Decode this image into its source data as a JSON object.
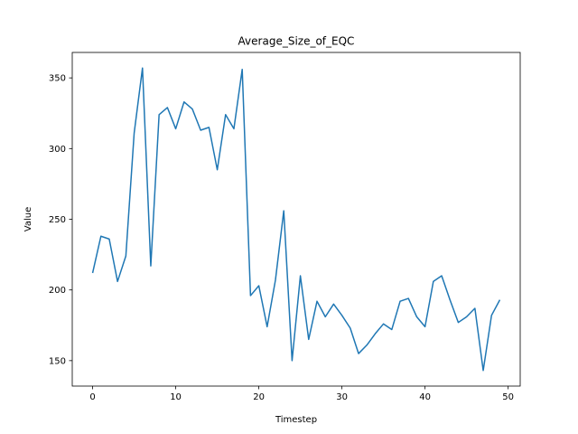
{
  "chart_data": {
    "type": "line",
    "title": "Average_Size_of_EQC",
    "xlabel": "Timestep",
    "ylabel": "Value",
    "xlim": [
      -2.45,
      51.45
    ],
    "ylim": [
      132,
      368
    ],
    "xticks": [
      0,
      10,
      20,
      30,
      40,
      50
    ],
    "yticks": [
      150,
      200,
      250,
      300,
      350
    ],
    "grid": false,
    "series": [
      {
        "color": "#1f77b4",
        "x": [
          0,
          1,
          2,
          3,
          4,
          5,
          6,
          7,
          8,
          9,
          10,
          11,
          12,
          13,
          14,
          15,
          16,
          17,
          18,
          19,
          20,
          21,
          22,
          23,
          24,
          25,
          26,
          27,
          28,
          29,
          30,
          31,
          32,
          33,
          34,
          35,
          36,
          37,
          38,
          39,
          40,
          41,
          42,
          43,
          44,
          45,
          46,
          47,
          48,
          49
        ],
        "values": [
          212,
          238,
          236,
          206,
          224,
          311,
          357,
          217,
          324,
          329,
          314,
          333,
          328,
          313,
          315,
          285,
          324,
          314,
          356,
          196,
          203,
          174,
          207,
          256,
          150,
          210,
          165,
          192,
          181,
          190,
          182,
          173,
          155,
          161,
          169,
          176,
          172,
          192,
          194,
          181,
          174,
          206,
          210,
          193,
          177,
          181,
          187,
          143,
          182,
          193
        ]
      }
    ]
  }
}
